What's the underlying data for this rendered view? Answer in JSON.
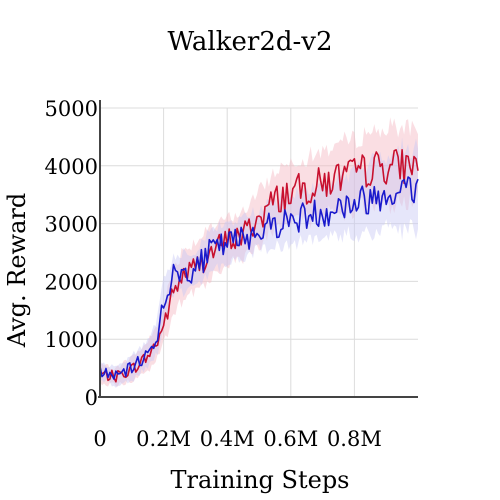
{
  "chart_data": {
    "type": "line",
    "title": "Walker2d-v2",
    "xlabel": "Training Steps",
    "ylabel": "Avg. Reward",
    "xlim": [
      0,
      1000000
    ],
    "ylim": [
      0,
      5000
    ],
    "x_ticks": [
      0,
      200000,
      400000,
      600000,
      800000
    ],
    "x_tick_labels": [
      "0",
      "0.2M",
      "0.4M",
      "0.6M",
      "0.8M"
    ],
    "y_ticks": [
      0,
      1000,
      2000,
      3000,
      4000,
      5000
    ],
    "y_tick_labels": [
      "0",
      "1000",
      "2000",
      "3000",
      "4000",
      "5000"
    ],
    "grid": true,
    "legend": "none",
    "series": [
      {
        "color": "#c8102e",
        "band_color": "#f3b5c0",
        "x": [
          0,
          50000,
          100000,
          150000,
          180000,
          200000,
          230000,
          260000,
          300000,
          350000,
          400000,
          450000,
          500000,
          550000,
          600000,
          650000,
          700000,
          750000,
          800000,
          850000,
          900000,
          950000,
          1000000
        ],
        "values": [
          400,
          350,
          480,
          700,
          950,
          1250,
          1800,
          2100,
          2250,
          2500,
          2700,
          2800,
          3100,
          3400,
          3550,
          3600,
          3700,
          3800,
          3850,
          3950,
          4000,
          4000,
          4050
        ],
        "spread": [
          150,
          150,
          200,
          250,
          300,
          350,
          400,
          450,
          450,
          400,
          400,
          400,
          450,
          500,
          550,
          550,
          550,
          600,
          600,
          650,
          650,
          650,
          700
        ]
      },
      {
        "color": "#1a1acc",
        "band_color": "#c8c8f5",
        "x": [
          0,
          50000,
          100000,
          150000,
          180000,
          200000,
          230000,
          260000,
          300000,
          350000,
          400000,
          450000,
          500000,
          550000,
          600000,
          650000,
          700000,
          750000,
          800000,
          850000,
          900000,
          950000,
          1000000
        ],
        "values": [
          450,
          350,
          500,
          750,
          1050,
          1650,
          2100,
          2150,
          2200,
          2550,
          2650,
          2750,
          2900,
          3000,
          3050,
          3150,
          3200,
          3300,
          3350,
          3450,
          3550,
          3600,
          3600
        ],
        "spread": [
          150,
          150,
          200,
          250,
          300,
          350,
          350,
          350,
          350,
          350,
          350,
          350,
          350,
          400,
          400,
          450,
          450,
          500,
          550,
          600,
          650,
          700,
          750
        ]
      }
    ]
  }
}
